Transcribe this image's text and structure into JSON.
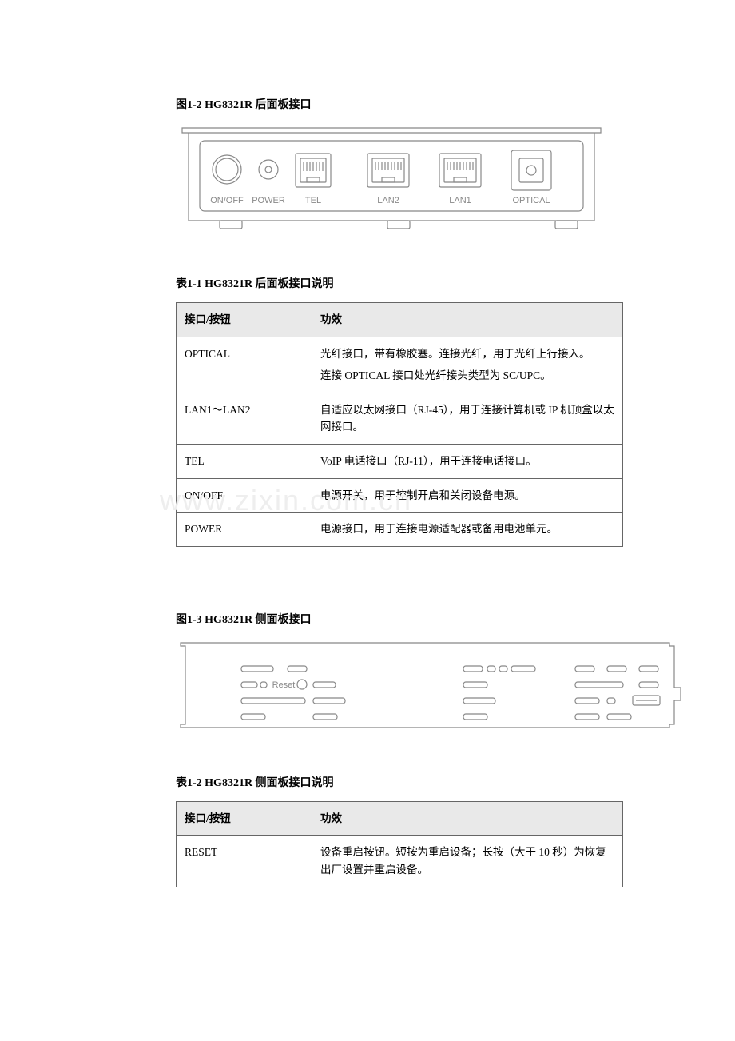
{
  "fig1": {
    "caption": "图1-2 HG8321R 后面板接口",
    "labels": {
      "onoff": "ON/OFF",
      "power": "POWER",
      "tel": "TEL",
      "lan2": "LAN2",
      "lan1": "LAN1",
      "optical": "OPTICAL"
    },
    "stroke": "#888888",
    "label_color": "#888888"
  },
  "table1": {
    "caption": "表1-1 HG8321R 后面板接口说明",
    "headers": [
      "接口/按钮",
      "功效"
    ],
    "rows": [
      [
        "OPTICAL",
        "光纤接口，带有橡胶塞。连接光纤，用于光纤上行接入。\n连接 OPTICAL 接口处光纤接头类型为 SC/UPC。"
      ],
      [
        "LAN1～LAN2",
        "自适应以太网接口（RJ-45），用于连接计算机或 IP 机顶盒以太网接口。"
      ],
      [
        "TEL",
        "VoIP 电话接口（RJ-11），用于连接电话接口。"
      ],
      [
        "ON/OFF",
        "电源开关，用于控制开启和关闭设备电源。"
      ],
      [
        "POWER",
        "电源接口，用于连接电源适配器或备用电池单元。"
      ]
    ],
    "header_bg": "#e9e9e9",
    "border_color": "#666666",
    "col1_width": 170
  },
  "fig2": {
    "caption": "图1-3 HG8321R 侧面板接口",
    "reset_label": "Reset",
    "stroke": "#888888"
  },
  "table2": {
    "caption": "表1-2 HG8321R 侧面板接口说明",
    "headers": [
      "接口/按钮",
      "功效"
    ],
    "rows": [
      [
        "RESET",
        "设备重启按钮。短按为重启设备；长按（大于 10 秒）为恢复出厂设置并重启设备。"
      ]
    ],
    "header_bg": "#e9e9e9",
    "border_color": "#666666",
    "col1_width": 170
  },
  "watermark": "www.zixin.com.cn"
}
